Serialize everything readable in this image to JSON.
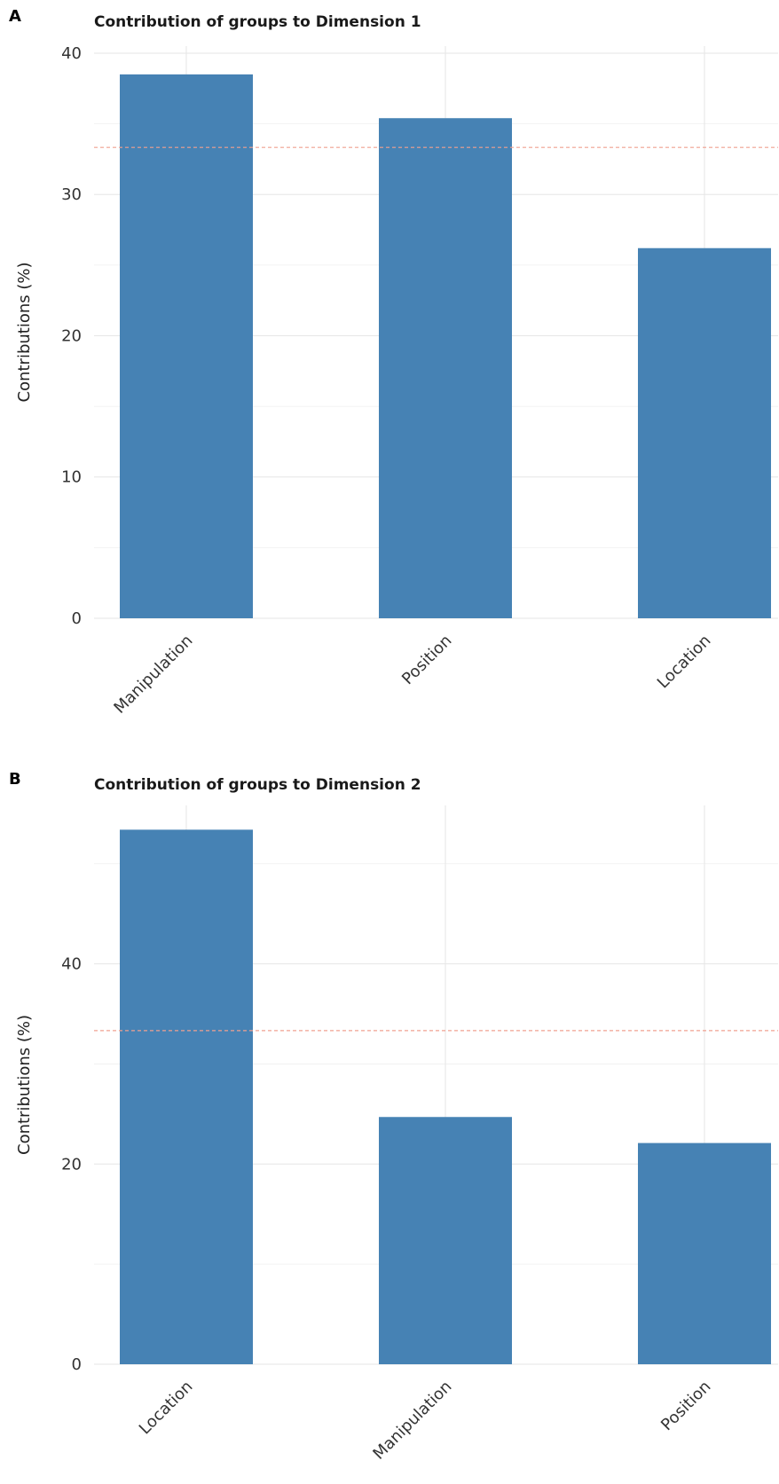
{
  "figure": {
    "bar_color": "#4682B4",
    "reference_line_color": "#F0A090",
    "reference_line_value": 33.33
  },
  "chart_data": [
    {
      "panel": "A",
      "type": "bar",
      "title": "Contribution of groups to Dimension 1",
      "xlabel": "",
      "ylabel": "Contributions (%)",
      "categories": [
        "Manipulation",
        "Position",
        "Location"
      ],
      "values": [
        38.5,
        35.4,
        26.2
      ],
      "ylim": [
        0,
        40
      ],
      "yticks": [
        0,
        10,
        20,
        30,
        40
      ],
      "reference_line": 33.33,
      "grid": true
    },
    {
      "panel": "B",
      "type": "bar",
      "title": "Contribution of groups to Dimension 2",
      "xlabel": "",
      "ylabel": "Contributions (%)",
      "categories": [
        "Location",
        "Manipulation",
        "Position"
      ],
      "values": [
        53.4,
        24.7,
        22.1
      ],
      "ylim": [
        0,
        55
      ],
      "yticks": [
        0,
        20,
        40
      ],
      "reference_line": 33.33,
      "grid": true
    }
  ]
}
